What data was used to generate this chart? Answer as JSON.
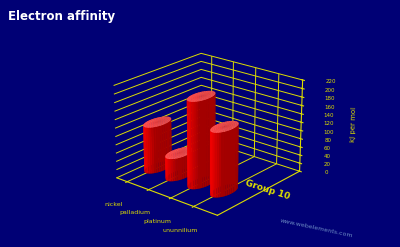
{
  "title": "Electron affinity",
  "zlabel": "kJ per mol",
  "xlabel_group": "Group 10",
  "elements": [
    "nickel",
    "palladium",
    "platinum",
    "ununnilium"
  ],
  "values": [
    112,
    54,
    205,
    151
  ],
  "bar_color_main": "#cc0000",
  "bar_color_light": "#ff5555",
  "bar_color_dark": "#880000",
  "background_color": "#000075",
  "axis_color": "#dddd00",
  "text_color": "#dddd00",
  "title_color": "#ffffff",
  "yticks": [
    0,
    20,
    40,
    60,
    80,
    100,
    120,
    140,
    160,
    180,
    200,
    220
  ],
  "ylim_max": 220,
  "watermark": "www.webelements.com",
  "figsize": [
    4.0,
    2.47
  ],
  "dpi": 100,
  "elev": 22,
  "azim": -50
}
